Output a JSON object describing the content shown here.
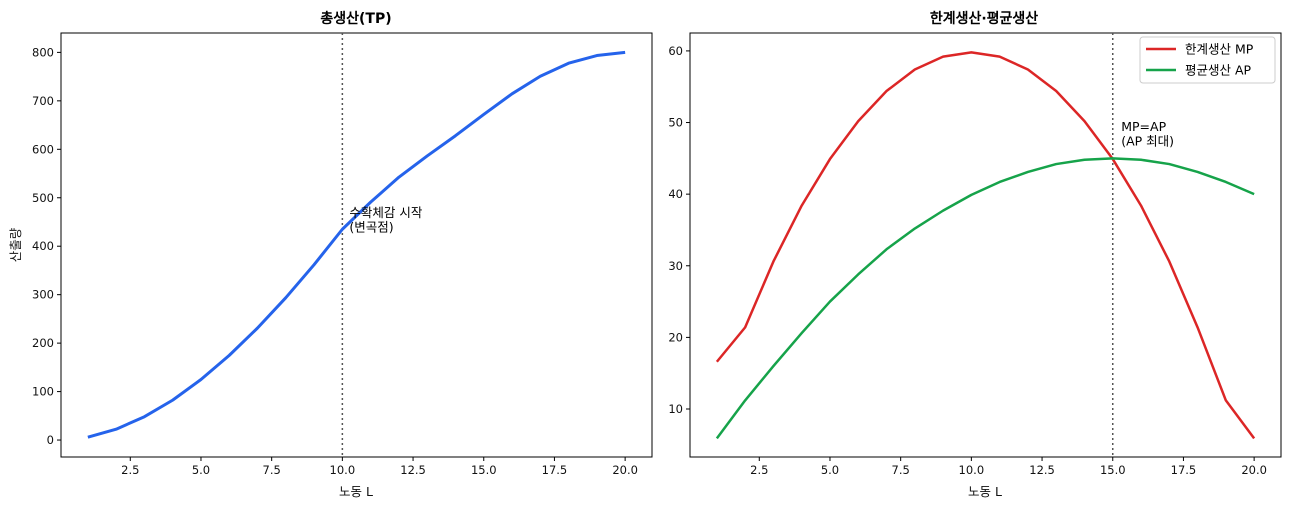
{
  "chart_data": [
    {
      "type": "line",
      "title": "총생산(TP)",
      "xlabel": "노동 L",
      "ylabel": "산출량",
      "xlim": [
        0.05,
        20.95
      ],
      "ylim": [
        -35,
        840
      ],
      "xticks": [
        2.5,
        5.0,
        7.5,
        10.0,
        12.5,
        15.0,
        17.5,
        20.0
      ],
      "xtick_labels": [
        "2.5",
        "5.0",
        "7.5",
        "10.0",
        "12.5",
        "15.0",
        "17.5",
        "20.0"
      ],
      "yticks": [
        0,
        100,
        200,
        300,
        400,
        500,
        600,
        700,
        800
      ],
      "ytick_labels": [
        "0",
        "100",
        "200",
        "300",
        "400",
        "500",
        "600",
        "700",
        "800"
      ],
      "x": [
        1,
        2,
        3,
        4,
        5,
        6,
        7,
        8,
        9,
        10,
        11,
        12,
        13,
        14,
        15,
        16,
        17,
        18,
        19,
        20
      ],
      "series": [
        {
          "color": "#2563eb",
          "values": [
            5.9,
            22.4,
            48.1,
            82.4,
            124.9,
            174.7,
            231.2,
            293.8,
            361.9,
            435.0,
            491.0,
            542.5,
            586.3,
            628.0,
            672.0,
            714.5,
            750.7,
            777.6,
            793.5,
            800.0
          ]
        }
      ],
      "vline": {
        "x": 10,
        "color": "#555555",
        "style": "dotted"
      },
      "annotation": {
        "lines": [
          "수확체감 시작",
          "(변곡점)"
        ],
        "x": 10.25,
        "y": 460
      }
    },
    {
      "type": "line",
      "title": "한계생산·평균생산",
      "xlabel": "노동 L",
      "ylabel": "",
      "xlim": [
        0.05,
        20.95
      ],
      "ylim": [
        3.3,
        62.5
      ],
      "xticks": [
        2.5,
        5.0,
        7.5,
        10.0,
        12.5,
        15.0,
        17.5,
        20.0
      ],
      "xtick_labels": [
        "2.5",
        "5.0",
        "7.5",
        "10.0",
        "12.5",
        "15.0",
        "17.5",
        "20.0"
      ],
      "yticks": [
        10,
        20,
        30,
        40,
        50,
        60
      ],
      "ytick_labels": [
        "10",
        "20",
        "30",
        "40",
        "50",
        "60"
      ],
      "x": [
        1,
        2,
        3,
        4,
        5,
        6,
        7,
        8,
        9,
        10,
        11,
        12,
        13,
        14,
        15,
        16,
        17,
        18,
        19,
        20
      ],
      "series": [
        {
          "name": "한계생산 MP",
          "color": "#dc2626",
          "values": [
            16.6,
            21.4,
            30.6,
            38.4,
            44.9,
            50.2,
            54.4,
            57.4,
            59.2,
            59.8,
            59.2,
            57.4,
            54.4,
            50.2,
            44.9,
            38.4,
            30.6,
            21.4,
            11.2,
            5.9
          ]
        },
        {
          "name": "평균생산 AP",
          "color": "#16a34a",
          "values": [
            5.9,
            11.2,
            16.0,
            20.6,
            25.0,
            28.8,
            32.3,
            35.2,
            37.7,
            39.9,
            41.7,
            43.1,
            44.2,
            44.8,
            45.0,
            44.8,
            44.2,
            43.1,
            41.7,
            40.0
          ]
        }
      ],
      "vline": {
        "x": 15,
        "color": "#555555",
        "style": "dotted"
      },
      "annotation": {
        "lines": [
          "MP=AP",
          "(AP 최대)"
        ],
        "x": 15.3,
        "y": 48.8
      },
      "legend": "top-right"
    }
  ]
}
